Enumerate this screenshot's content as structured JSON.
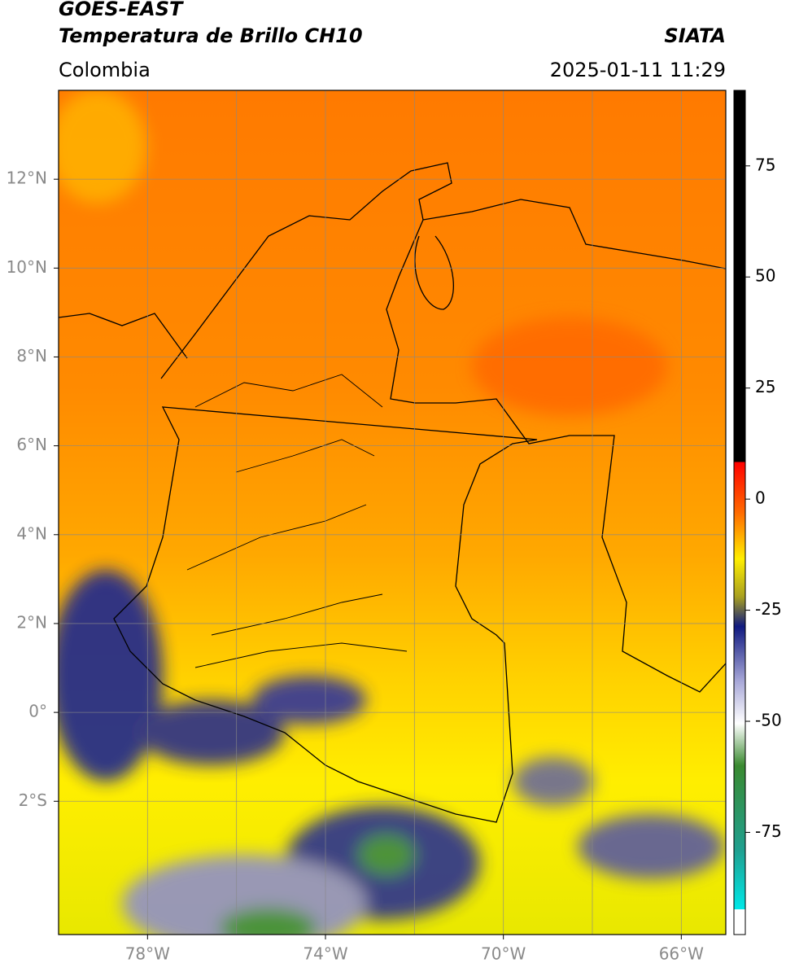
{
  "chart_data": {
    "type": "map",
    "title": "GOES-EAST",
    "subtitle": "Temperatura de Brillo CH10",
    "source": "SIATA",
    "region": "Colombia",
    "timestamp": "2025-01-11 11:29",
    "xlim": [
      -80,
      -65
    ],
    "ylim": [
      -5,
      14
    ],
    "xticks": [
      {
        "value": -78,
        "label": "78°W"
      },
      {
        "value": -74,
        "label": "74°W"
      },
      {
        "value": -70,
        "label": "70°W"
      },
      {
        "value": -66,
        "label": "66°W"
      }
    ],
    "yticks": [
      {
        "value": 12,
        "label": "12°N"
      },
      {
        "value": 10,
        "label": "10°N"
      },
      {
        "value": 8,
        "label": "8°N"
      },
      {
        "value": 6,
        "label": "6°N"
      },
      {
        "value": 4,
        "label": "4°N"
      },
      {
        "value": 2,
        "label": "2°N"
      },
      {
        "value": 0,
        "label": "0°"
      },
      {
        "value": -2,
        "label": "2°S"
      }
    ],
    "xgrid": [
      -78,
      -76,
      -74,
      -72,
      -70,
      -68,
      -66
    ],
    "grid": true,
    "colorbar": {
      "lim": [
        -98,
        92
      ],
      "ticks": [
        75,
        50,
        25,
        0,
        -25,
        -50,
        -75
      ]
    }
  }
}
